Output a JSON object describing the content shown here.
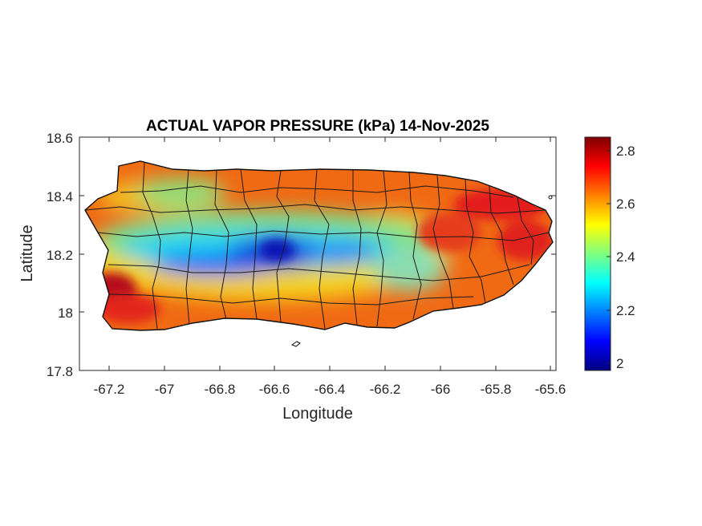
{
  "figure": {
    "title": "ACTUAL VAPOR PRESSURE (kPa) 14-Nov-2025",
    "xlabel": "Longitude",
    "ylabel": "Latitude"
  },
  "map": {
    "region": "Puerto Rico",
    "xlim": [
      -67.3,
      -65.58
    ],
    "ylim": [
      17.8,
      18.6
    ],
    "x_ticks": [
      "-67.2",
      "-67",
      "-66.8",
      "-66.6",
      "-66.4",
      "-66.2",
      "-66",
      "-65.8",
      "-65.6"
    ],
    "y_ticks": [
      "18.6",
      "18.4",
      "18.2",
      "18",
      "17.8"
    ],
    "field_description_colors": {
      "high": "#d7191c",
      "mid": "#f7e500",
      "low": "#0a20d8"
    }
  },
  "colorbar": {
    "min": 1.98,
    "max": 2.86,
    "ticks": [
      "2.8",
      "2.6",
      "2.4",
      "2.2",
      "2"
    ],
    "colormap": "jet"
  },
  "chart_data": {
    "type": "heatmap",
    "title": "ACTUAL VAPOR PRESSURE (kPa) 14-Nov-2025",
    "xlabel": "Longitude",
    "ylabel": "Latitude",
    "xlim": [
      -67.3,
      -65.58
    ],
    "ylim": [
      17.8,
      18.6
    ],
    "x_ticks": [
      -67.2,
      -67,
      -66.8,
      -66.6,
      -66.4,
      -66.2,
      -66,
      -65.8,
      -65.6
    ],
    "y_ticks": [
      17.8,
      18,
      18.2,
      18.4,
      18.6
    ],
    "colorbar_range": [
      1.98,
      2.86
    ],
    "colorbar_ticks": [
      2,
      2.2,
      2.4,
      2.6,
      2.8
    ],
    "grid": false
  }
}
